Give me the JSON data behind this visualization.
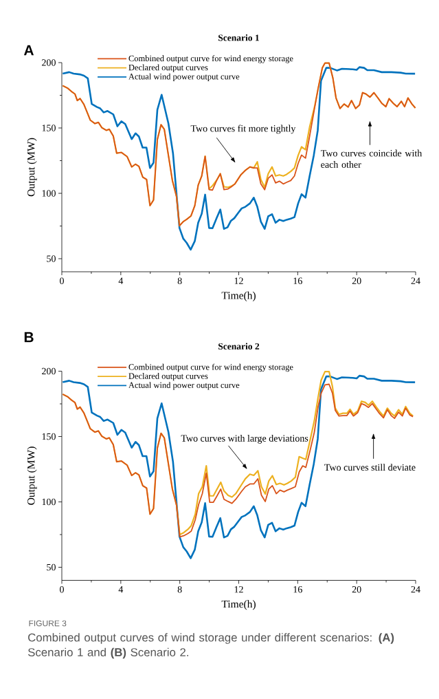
{
  "chart_data": [
    {
      "type": "line",
      "title": "Scenario 1",
      "xlabel": "Time(h)",
      "ylabel": "Output (MW)",
      "xlim": [
        0,
        24
      ],
      "ylim": [
        40,
        200
      ],
      "xticks": [
        0,
        {
          "value": 2,
          "label": null
        },
        4,
        {
          "value": 6,
          "label": null
        },
        8,
        {
          "value": 10,
          "label": null
        },
        12,
        {
          "value": 14,
          "label": null
        },
        16,
        {
          "value": 18,
          "label": null
        },
        20,
        {
          "value": 22,
          "label": null
        },
        24
      ],
      "yticks": [
        50,
        {
          "value": 75,
          "label": null
        },
        100,
        {
          "value": 125,
          "label": null
        },
        150,
        {
          "value": 175,
          "label": null
        },
        200
      ],
      "legend": "top left",
      "annotations": [
        "A",
        "Two curves fit more tightly",
        "Two curves coincide with each other"
      ],
      "series": [
        {
          "name": "Combined output curve for wind energy storage",
          "color": "#d95319",
          "x": [
            0.06,
            0.4,
            0.69,
            0.89,
            1.05,
            1.24,
            1.5,
            1.76,
            1.93,
            2.24,
            2.48,
            2.71,
            3.02,
            3.22,
            3.49,
            3.72,
            4.04,
            4.43,
            4.74,
            5.0,
            5.23,
            5.49,
            5.75,
            5.98,
            6.22,
            6.48,
            6.73,
            6.95,
            7.23,
            7.5,
            7.78,
            7.98,
            8.24,
            8.47,
            8.76,
            9.02,
            9.25,
            9.49,
            9.72,
            9.99,
            10.22,
            10.5,
            10.75,
            11.0,
            11.28,
            11.5,
            11.74,
            12.14,
            12.45,
            12.76,
            13.02,
            13.26,
            13.5,
            13.76,
            14.0,
            14.26,
            14.5,
            14.76,
            15.02,
            15.25,
            15.53,
            15.78,
            16.03,
            16.26,
            16.53,
            16.81,
            17.14,
            17.4,
            17.67,
            17.85,
            18.13,
            18.39,
            18.6,
            18.87,
            19.15,
            19.42,
            19.65,
            19.93,
            20.19,
            20.4,
            20.63,
            20.9,
            21.17,
            21.44,
            21.7,
            21.98,
            22.2,
            22.48,
            22.74,
            23.03,
            23.25,
            23.48,
            23.75,
            23.98
          ],
          "values": [
            182.4,
            180.4,
            177.6,
            176,
            171,
            172.5,
            168,
            160.8,
            156,
            153.4,
            154.3,
            150.3,
            148.2,
            149,
            143.8,
            130.7,
            131.3,
            128.1,
            120.2,
            122.3,
            120.6,
            112.4,
            110.6,
            90.6,
            94.9,
            141.2,
            152.5,
            149,
            129,
            109.8,
            97.5,
            75.2,
            78.4,
            80.1,
            82.7,
            90.6,
            106.3,
            113.3,
            128.4,
            102.8,
            102.5,
            109.8,
            115,
            102.8,
            103.4,
            105,
            107.2,
            114.1,
            117.6,
            120.2,
            119.4,
            119.4,
            107.2,
            102.8,
            111.5,
            114.1,
            108,
            109.3,
            107.2,
            108.4,
            109.8,
            113.3,
            122.9,
            129.3,
            126.9,
            143.8,
            164.9,
            181,
            196,
            199.7,
            199.7,
            188,
            172.9,
            164.9,
            168.3,
            166,
            171,
            164.9,
            167.6,
            177,
            176,
            173.6,
            177,
            173,
            168.9,
            166.3,
            172.4,
            168.9,
            166.3,
            170.4,
            166.3,
            173,
            168.3,
            165.3
          ]
        },
        {
          "name": "Declared output curves",
          "color": "#edb120",
          "x": [
            0.06,
            0.4,
            0.69,
            0.89,
            1.05,
            1.24,
            1.5,
            1.76,
            1.93,
            2.24,
            2.48,
            2.71,
            3.02,
            3.22,
            3.49,
            3.72,
            4.04,
            4.43,
            4.74,
            5.0,
            5.23,
            5.49,
            5.75,
            5.98,
            6.22,
            6.48,
            6.73,
            6.95,
            7.23,
            7.5,
            7.78,
            7.98,
            8.24,
            8.47,
            8.76,
            9.02,
            9.25,
            9.49,
            9.72,
            9.99,
            10.22,
            10.5,
            10.75,
            11.0,
            11.28,
            11.5,
            11.74,
            12.14,
            12.45,
            12.76,
            13.02,
            13.26,
            13.5,
            13.76,
            14.0,
            14.26,
            14.5,
            14.76,
            15.02,
            15.25,
            15.53,
            15.78,
            16.03,
            16.26,
            16.53,
            16.81,
            17.14,
            17.4,
            17.67,
            17.85,
            18.13,
            18.39,
            18.6,
            18.87,
            19.15,
            19.42,
            19.65,
            19.93,
            20.19,
            20.4,
            20.63,
            20.9,
            21.17,
            21.44,
            21.7,
            21.98,
            22.2,
            22.48,
            22.74,
            23.03,
            23.25,
            23.48,
            23.75,
            23.98
          ],
          "values": [
            182.4,
            180.4,
            177.6,
            176,
            171,
            172.5,
            168,
            160.8,
            156,
            153.4,
            154.3,
            150.3,
            148.2,
            149,
            143.8,
            130.7,
            131.3,
            128.1,
            120.2,
            122.3,
            120.6,
            112.4,
            110.6,
            90.6,
            94.9,
            141.2,
            152.5,
            149,
            129,
            109.8,
            97.5,
            75.2,
            78.4,
            80.1,
            82.7,
            90.6,
            106.3,
            113.3,
            128.4,
            103.5,
            105.8,
            110,
            115,
            105,
            104.6,
            105.5,
            107.2,
            114.1,
            117.6,
            120.2,
            119.4,
            124.1,
            110.6,
            104.6,
            115,
            120.2,
            113.3,
            114.1,
            113.3,
            114.5,
            116.8,
            119.4,
            129,
            135.6,
            133.4,
            150.8,
            166,
            181,
            196,
            199.7,
            199.7,
            188,
            172.9,
            164.9,
            168.3,
            166,
            171,
            164.9,
            167.6,
            177,
            176,
            173.6,
            177,
            173,
            168.9,
            166.3,
            172.4,
            168.9,
            166.3,
            170.4,
            166.3,
            173,
            168.3,
            165.3
          ]
        },
        {
          "name": "Actual wind power output curve",
          "color": "#0072bd",
          "x": [
            0.06,
            0.5,
            0.8,
            1.22,
            1.5,
            1.76,
            2.03,
            2.39,
            2.6,
            2.84,
            3.1,
            3.49,
            3.77,
            4.04,
            4.3,
            4.74,
            5.0,
            5.23,
            5.48,
            5.74,
            5.98,
            6.22,
            6.48,
            6.77,
            7.23,
            7.54,
            7.98,
            8.24,
            8.47,
            8.74,
            9.02,
            9.25,
            9.49,
            9.72,
            9.99,
            10.22,
            10.5,
            10.75,
            11.0,
            11.24,
            11.47,
            11.7,
            11.98,
            12.2,
            12.45,
            12.76,
            13.02,
            13.26,
            13.5,
            13.76,
            14.0,
            14.26,
            14.5,
            14.76,
            15.02,
            15.25,
            15.53,
            15.78,
            16.03,
            16.26,
            16.53,
            16.81,
            17.09,
            17.36,
            17.58,
            17.94,
            18.2,
            18.66,
            19.0,
            19.74,
            20.0,
            20.19,
            20.5,
            20.72,
            21.17,
            21.7,
            22.35,
            22.98,
            23.33,
            23.96
          ],
          "values": [
            191.6,
            192.7,
            191.6,
            191,
            190,
            188,
            168.3,
            166,
            165,
            161.9,
            163,
            160.4,
            151.3,
            155.1,
            153,
            141.5,
            145.9,
            143.4,
            135,
            135,
            119.4,
            123.4,
            163.9,
            175.4,
            153.4,
            130.7,
            73.5,
            65.3,
            62.1,
            56.9,
            63.5,
            77.5,
            84.4,
            99.0,
            73.5,
            73.3,
            81,
            87.6,
            72.8,
            74,
            79,
            81,
            85.3,
            88.5,
            89.7,
            92.3,
            96.7,
            89.7,
            78.4,
            72.8,
            82.4,
            84,
            77.5,
            79.8,
            78.8,
            79.8,
            80.7,
            81.8,
            92.3,
            99.3,
            96.7,
            113.3,
            129,
            148.2,
            186,
            196,
            196,
            194,
            195.3,
            194.9,
            194.5,
            196.5,
            196,
            194.2,
            194.2,
            192.7,
            192.7,
            192.3,
            191.6,
            191.5
          ]
        }
      ]
    },
    {
      "type": "line",
      "title": "Scenario 2",
      "xlabel": "Time(h)",
      "ylabel": "Output (MW)",
      "xlim": [
        0,
        24
      ],
      "ylim": [
        40,
        200
      ],
      "xticks": [
        0,
        {
          "value": 2,
          "label": null
        },
        4,
        {
          "value": 6,
          "label": null
        },
        8,
        {
          "value": 10,
          "label": null
        },
        12,
        {
          "value": 14,
          "label": null
        },
        16,
        {
          "value": 18,
          "label": null
        },
        20,
        {
          "value": 22,
          "label": null
        },
        24
      ],
      "yticks": [
        50,
        {
          "value": 75,
          "label": null
        },
        100,
        {
          "value": 125,
          "label": null
        },
        150,
        {
          "value": 175,
          "label": null
        },
        200
      ],
      "legend": "top left",
      "annotations": [
        "B",
        "Two curves with large deviations",
        "Two curves still deviate",
        "FIGURE 3",
        "Combined output curves of wind storage under different scenarios: **(A)** Scenario 1 and **(B)** Scenario 2."
      ],
      "series": [
        {
          "name": "Combined output curve for wind energy storage",
          "color": "#d95319",
          "x": [
            0.06,
            0.4,
            0.69,
            0.89,
            1.05,
            1.24,
            1.5,
            1.76,
            1.93,
            2.24,
            2.48,
            2.71,
            3.02,
            3.22,
            3.49,
            3.72,
            4.04,
            4.43,
            4.74,
            5.0,
            5.23,
            5.49,
            5.75,
            5.98,
            6.22,
            6.48,
            6.73,
            6.95,
            7.23,
            7.5,
            7.78,
            8.0,
            8.27,
            8.55,
            8.78,
            9.05,
            9.28,
            9.53,
            9.8,
            10.03,
            10.28,
            10.53,
            10.78,
            11.0,
            11.28,
            11.54,
            11.8,
            12.22,
            12.45,
            12.76,
            13.02,
            13.3,
            13.54,
            13.8,
            14.04,
            14.28,
            14.55,
            14.8,
            15.07,
            15.3,
            15.56,
            15.84,
            16.1,
            16.34,
            16.55,
            16.86,
            17.13,
            17.38,
            17.59,
            17.85,
            18.13,
            18.36,
            18.55,
            18.8,
            19.07,
            19.34,
            19.55,
            19.78,
            20.07,
            20.33,
            20.58,
            20.8,
            21.06,
            21.33,
            21.56,
            21.82,
            22.08,
            22.34,
            22.57,
            22.84,
            23.1,
            23.32,
            23.6,
            23.82
          ],
          "values": [
            182.4,
            180.4,
            177.6,
            176,
            171,
            172.5,
            168,
            160.8,
            156,
            153.4,
            154.3,
            150.3,
            148.2,
            149,
            143.8,
            130.7,
            131.3,
            128.1,
            120.2,
            122.3,
            120.6,
            112.4,
            110.6,
            90.6,
            94.9,
            141.2,
            152.5,
            149,
            129,
            109.8,
            97.5,
            73.2,
            74.1,
            75.8,
            77.6,
            86.3,
            98,
            106.3,
            122,
            99.7,
            99.7,
            104.6,
            109.8,
            102,
            100.3,
            98.9,
            102,
            108.4,
            111.6,
            113.7,
            113.7,
            117.7,
            105.1,
            100.3,
            109.8,
            112.4,
            106.3,
            109,
            107.7,
            109,
            110.2,
            111.6,
            122.9,
            127.6,
            126.4,
            140.3,
            153.4,
            172.6,
            183.1,
            189.5,
            190,
            183,
            170,
            165.7,
            166,
            166,
            169.5,
            165.7,
            168.3,
            175.2,
            174,
            172.3,
            175.2,
            170.9,
            167.4,
            164.3,
            170.5,
            166,
            163.9,
            168.6,
            165.7,
            171.7,
            166.5,
            165.2
          ]
        },
        {
          "name": "Declared output curves",
          "color": "#edb120",
          "x": [
            0.06,
            0.4,
            0.69,
            0.89,
            1.05,
            1.24,
            1.5,
            1.76,
            1.93,
            2.24,
            2.48,
            2.71,
            3.02,
            3.22,
            3.49,
            3.72,
            4.04,
            4.43,
            4.74,
            5.0,
            5.23,
            5.49,
            5.75,
            5.98,
            6.22,
            6.48,
            6.73,
            6.95,
            7.23,
            7.5,
            7.78,
            8.0,
            8.27,
            8.55,
            8.78,
            9.05,
            9.28,
            9.53,
            9.8,
            10.03,
            10.28,
            10.53,
            10.78,
            11.0,
            11.28,
            11.54,
            11.8,
            12.22,
            12.45,
            12.76,
            13.02,
            13.3,
            13.54,
            13.8,
            14.04,
            14.28,
            14.55,
            14.8,
            15.07,
            15.3,
            15.56,
            15.84,
            16.1,
            16.34,
            16.55,
            16.86,
            17.13,
            17.38,
            17.59,
            17.85,
            18.13,
            18.36,
            18.55,
            18.8,
            19.07,
            19.34,
            19.55,
            19.78,
            20.07,
            20.33,
            20.58,
            20.8,
            21.06,
            21.33,
            21.56,
            21.82,
            22.08,
            22.34,
            22.57,
            22.84,
            23.1,
            23.32,
            23.6,
            23.82
          ],
          "values": [
            182.4,
            180.4,
            177.6,
            176,
            171,
            172.5,
            168,
            160.8,
            156,
            153.4,
            154.3,
            150.3,
            148.2,
            149,
            143.8,
            130.7,
            131.3,
            128.1,
            120.2,
            122.3,
            120.6,
            112.4,
            110.6,
            90.6,
            94.9,
            141.2,
            152.5,
            149,
            129,
            109.8,
            97.5,
            75,
            76.5,
            79,
            81.9,
            90.6,
            106.3,
            111.6,
            127.6,
            104.6,
            104.6,
            109.8,
            115,
            108.4,
            105,
            103.7,
            106.3,
            113.7,
            117.7,
            121.2,
            120.3,
            123.8,
            111.6,
            106,
            116,
            120,
            113.3,
            114.2,
            113,
            114.2,
            116,
            118.9,
            134.6,
            133.4,
            132.5,
            148.2,
            162.2,
            179.6,
            193,
            199.7,
            199.7,
            188,
            171.7,
            167,
            167.8,
            167.8,
            170.9,
            167,
            169.5,
            177,
            176.1,
            174,
            177,
            172.6,
            169.1,
            165.7,
            171.7,
            167.8,
            165.7,
            170.5,
            167,
            173,
            167.8,
            165.7
          ]
        },
        {
          "name": "Actual wind power output curve",
          "color": "#0072bd",
          "x": [
            0.06,
            0.5,
            0.8,
            1.22,
            1.5,
            1.76,
            2.03,
            2.39,
            2.6,
            2.84,
            3.1,
            3.49,
            3.77,
            4.04,
            4.3,
            4.74,
            5.0,
            5.23,
            5.48,
            5.74,
            5.98,
            6.22,
            6.48,
            6.77,
            7.23,
            7.54,
            7.98,
            8.24,
            8.47,
            8.74,
            9.02,
            9.25,
            9.49,
            9.72,
            9.99,
            10.22,
            10.5,
            10.75,
            11.0,
            11.24,
            11.47,
            11.7,
            11.98,
            12.2,
            12.45,
            12.76,
            13.02,
            13.26,
            13.5,
            13.76,
            14.0,
            14.26,
            14.5,
            14.76,
            15.02,
            15.25,
            15.53,
            15.78,
            16.03,
            16.26,
            16.53,
            16.81,
            17.09,
            17.36,
            17.58,
            17.94,
            18.2,
            18.66,
            19.0,
            19.74,
            20.0,
            20.19,
            20.5,
            20.72,
            21.17,
            21.7,
            22.35,
            22.98,
            23.33,
            23.96
          ],
          "values": [
            191.6,
            192.7,
            191.6,
            191,
            190,
            188,
            168.3,
            166,
            165,
            161.9,
            163,
            160.4,
            151.3,
            155.1,
            153,
            141.5,
            145.9,
            143.4,
            135,
            135,
            119.4,
            123.4,
            163.9,
            175.4,
            153.4,
            130.7,
            73.5,
            65.3,
            62.1,
            56.9,
            63.5,
            77.5,
            84.4,
            99.0,
            73.5,
            73.3,
            81,
            87.6,
            72.8,
            74,
            79,
            81,
            85.3,
            88.5,
            89.7,
            92.3,
            96.7,
            89.7,
            78.4,
            72.8,
            82.4,
            84,
            77.5,
            79.8,
            78.8,
            79.8,
            80.7,
            81.8,
            92.3,
            99.3,
            96.7,
            113.3,
            129,
            148.2,
            186,
            196,
            196,
            194,
            195.3,
            194.9,
            194.5,
            196.5,
            196,
            194.2,
            194.2,
            192.7,
            192.7,
            192.3,
            191.6,
            191.5
          ]
        }
      ]
    }
  ]
}
